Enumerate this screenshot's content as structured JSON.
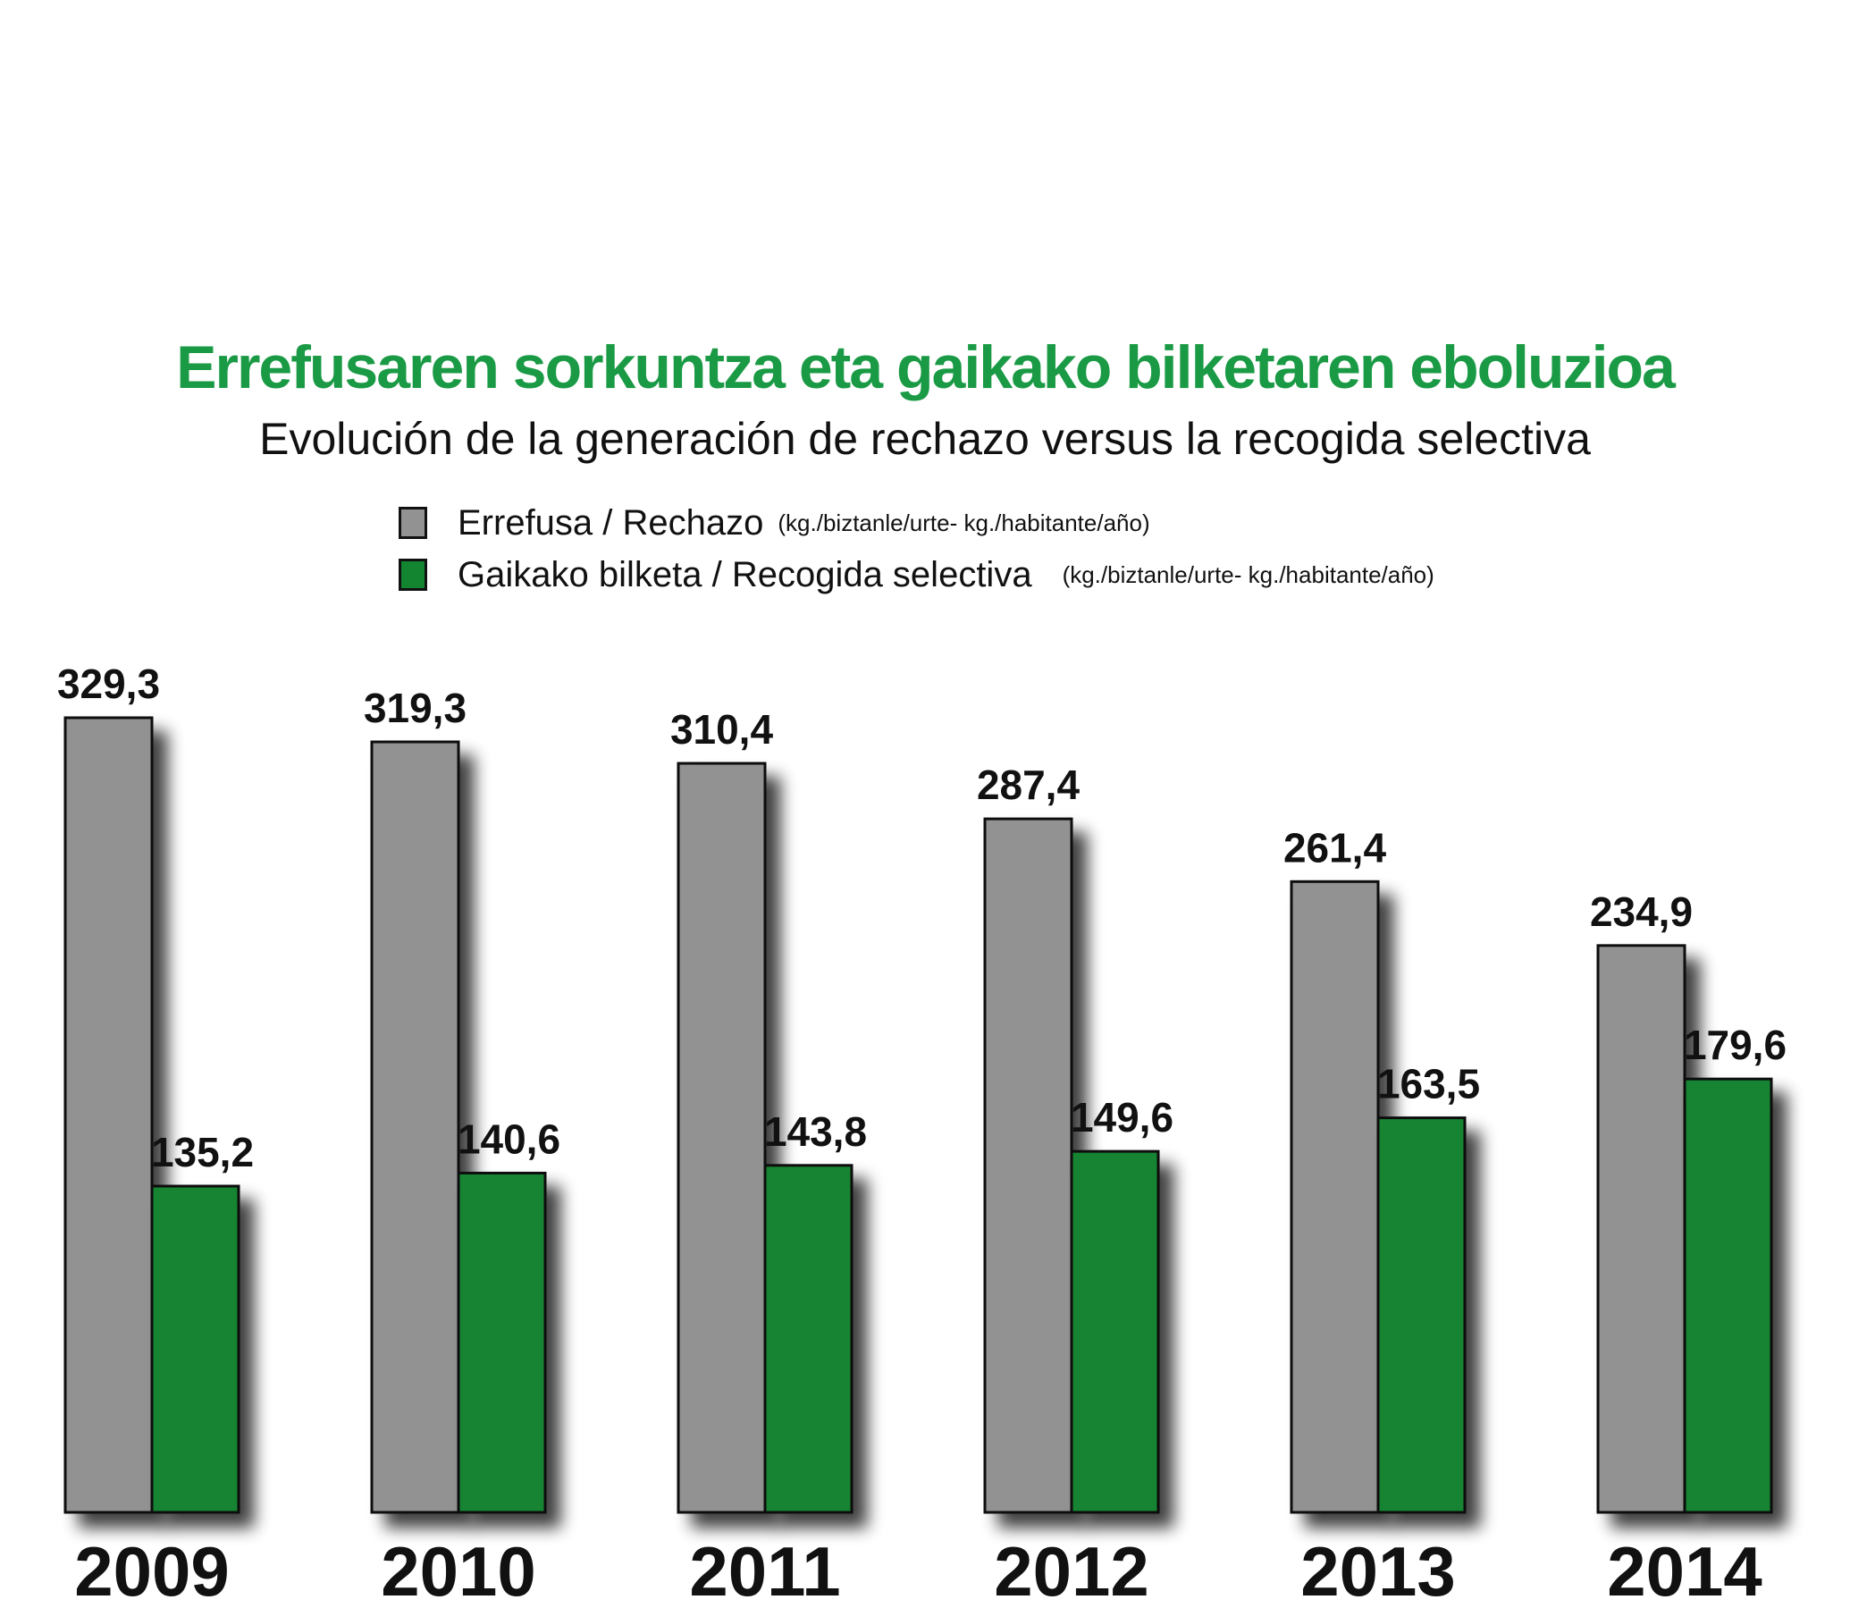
{
  "chart_data": {
    "type": "bar",
    "title": "Errefusaren sorkuntza eta gaikako bilketaren eboluzioa",
    "subtitle": "Evolución de la generación de rechazo versus la recogida selectiva",
    "categories": [
      "2009",
      "2010",
      "2011",
      "2012",
      "2013",
      "2014"
    ],
    "series": [
      {
        "name": "Errefusa / Rechazo",
        "unit": "(kg./biztanle/urte- kg./habitante/año)",
        "color": "#929292",
        "values": [
          329.3,
          319.3,
          310.4,
          287.4,
          261.4,
          234.9
        ],
        "labels": [
          "329,3",
          "319,3",
          "310,4",
          "287,4",
          "261,4",
          "234,9"
        ]
      },
      {
        "name": "Gaikako bilketa / Recogida selectiva",
        "unit": "(kg./biztanle/urte- kg./habitante/año)",
        "color": "#138430",
        "values": [
          135.2,
          140.6,
          143.8,
          149.6,
          163.5,
          179.6
        ],
        "labels": [
          "135,2",
          "140,6",
          "143,8",
          "149,6",
          "163,5",
          "179,6"
        ]
      }
    ],
    "legend_position": "top",
    "grid": false,
    "ylim": [
      0,
      329.3
    ],
    "xlabel": "",
    "ylabel": ""
  }
}
